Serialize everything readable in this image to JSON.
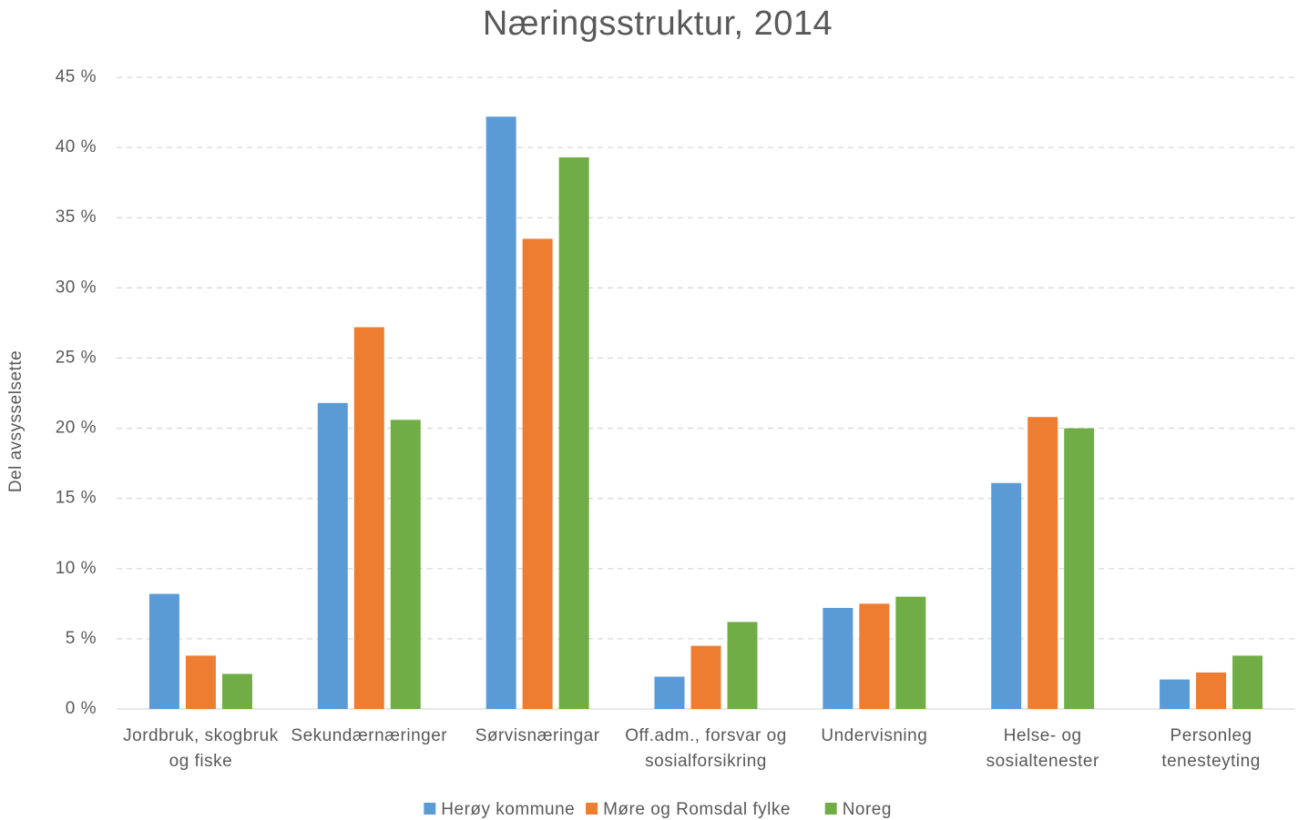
{
  "chart_data": {
    "type": "bar",
    "title": "Næringsstruktur, 2014",
    "y_label": "Del avsysselsette",
    "categories": [
      "Jordbruk, skogbruk og fiske",
      "Sekundærnæringer",
      "Sørvisnæringar",
      "Off.adm., forsvar og sosialforsikring",
      "Undervisning",
      "Helse- og sosialtenester",
      "Personleg tenesteyting"
    ],
    "series": [
      {
        "name": "Herøy kommune",
        "color": "#5b9bd5",
        "values": [
          8.2,
          21.8,
          42.2,
          2.3,
          7.2,
          16.1,
          2.1
        ]
      },
      {
        "name": "Møre og Romsdal fylke",
        "color": "#ed7d31",
        "values": [
          3.8,
          27.2,
          33.5,
          4.5,
          7.5,
          20.8,
          2.6
        ]
      },
      {
        "name": "Noreg",
        "color": "#70ad47",
        "values": [
          2.5,
          20.6,
          39.3,
          6.2,
          8.0,
          20.0,
          3.8
        ]
      }
    ],
    "ylim": [
      0,
      45
    ],
    "yticks": [
      {
        "value": 0,
        "label": "0 %"
      },
      {
        "value": 5,
        "label": "5 %"
      },
      {
        "value": 10,
        "label": "10 %"
      },
      {
        "value": 15,
        "label": "15 %"
      },
      {
        "value": 20,
        "label": "20 %"
      },
      {
        "value": 25,
        "label": "25 %"
      },
      {
        "value": 30,
        "label": "30 %"
      },
      {
        "value": 35,
        "label": "35 %"
      },
      {
        "value": 40,
        "label": "40 %"
      },
      {
        "value": 45,
        "label": "45 %"
      }
    ],
    "grid": true,
    "legend": "bottom"
  }
}
